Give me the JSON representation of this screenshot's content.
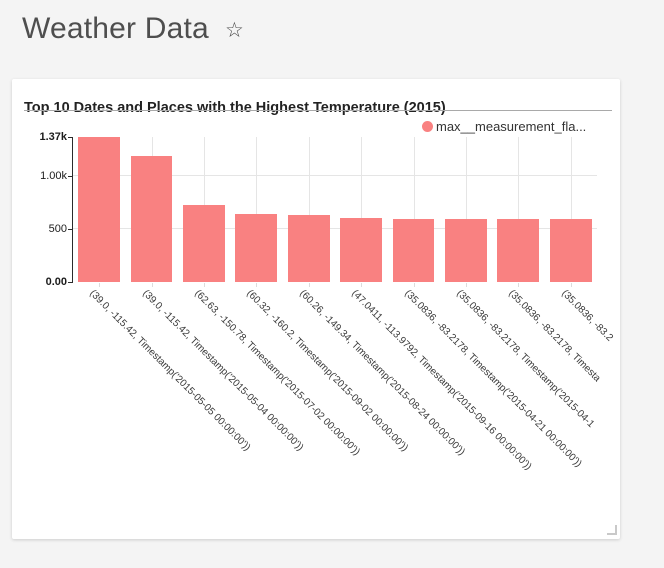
{
  "page": {
    "title": "Weather Data",
    "star_icon": "☆",
    "background_color": "#f4f4f4"
  },
  "card": {
    "title": "Top 10 Dates and Places with the Highest Temperature (2015)",
    "legend": {
      "label": "max__measurement_fla...",
      "color": "#f98181"
    }
  },
  "chart_data": {
    "type": "bar",
    "title": "Top 10 Dates and Places with the Highest Temperature (2015)",
    "legend": [
      "max__measurement_fla..."
    ],
    "legend_position": "top-right",
    "grid": true,
    "x_label_rotation_deg": 45,
    "xlabel": "",
    "ylabel": "",
    "ylim": [
      0,
      1370
    ],
    "y_ticks": [
      {
        "label": "0.00",
        "value": 0,
        "bold": true
      },
      {
        "label": "500",
        "value": 500,
        "bold": false
      },
      {
        "label": "1.00k",
        "value": 1000,
        "bold": false
      },
      {
        "label": "1.37k",
        "value": 1370,
        "bold": true
      }
    ],
    "categories": [
      "(39.0, -115.42, Timestamp('2015-05-05 00:00:00'))",
      "(39.0, -115.42, Timestamp('2015-05-04 00:00:00'))",
      "(62.63, -150.78, Timestamp('2015-07-02 00:00:00'))",
      "(60.32, -160.2, Timestamp('2015-09-02 00:00:00'))",
      "(60.26, -149.34, Timestamp('2015-08-24 00:00:00'))",
      "(47.0411, -113.9792, Timestamp('2015-09-16 00:00:00'))",
      "(35.0836, -83.2178, Timestamp('2015-04-21 00:00:00'))",
      "(35.0836, -83.2178, Timestamp('2015-04-1",
      "(35.0836, -83.2178, Timesta",
      "(35.0836, -83.2"
    ],
    "series": [
      {
        "name": "max__measurement_fla...",
        "color": "#f98181",
        "values": [
          1370,
          1190,
          725,
          645,
          635,
          605,
          598,
          597,
          596,
          595
        ]
      }
    ]
  }
}
